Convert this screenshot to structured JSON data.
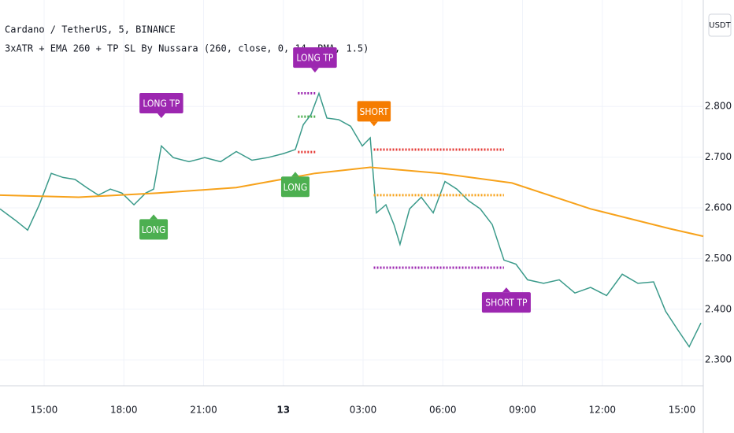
{
  "chart_data": {
    "type": "line",
    "title": "Cardano / TetherUS, 5, BINANCE",
    "subtitle": "3xATR + EMA 260 + TP SL By Nussara (260, close, 0, 14, RMA, 1.5)",
    "currency": "USDT",
    "xlim": [
      -1.66,
      24.8
    ],
    "ylim": [
      2.249,
      3.01
    ],
    "xticks": [
      {
        "value": 0,
        "label": "15:00"
      },
      {
        "value": 3,
        "label": "18:00"
      },
      {
        "value": 6,
        "label": "21:00"
      },
      {
        "value": 9,
        "label": "13"
      },
      {
        "value": 12,
        "label": "03:00"
      },
      {
        "value": 15,
        "label": "06:00"
      },
      {
        "value": 18,
        "label": "09:00"
      },
      {
        "value": 21,
        "label": "12:00"
      },
      {
        "value": 24,
        "label": "15:00"
      }
    ],
    "yticks": [
      {
        "value": 2.3,
        "label": "2.300"
      },
      {
        "value": 2.4,
        "label": "2.400"
      },
      {
        "value": 2.5,
        "label": "2.500"
      },
      {
        "value": 2.6,
        "label": "2.600"
      },
      {
        "value": 2.7,
        "label": "2.700"
      },
      {
        "value": 2.8,
        "label": "2.800"
      }
    ],
    "grid": true,
    "series": [
      {
        "color": "#3a9a8a",
        "x": [
          -1.66,
          -1.07,
          -0.62,
          -0.18,
          0.27,
          0.71,
          1.16,
          1.6,
          2.04,
          2.49,
          2.93,
          3.38,
          3.82,
          4.12,
          4.41,
          4.86,
          5.45,
          6.04,
          6.64,
          7.23,
          7.82,
          8.41,
          9.0,
          9.45,
          9.75,
          10.04,
          10.34,
          10.64,
          11.08,
          11.53,
          11.97,
          12.27,
          12.5,
          12.86,
          13.16,
          13.39,
          13.75,
          14.19,
          14.64,
          15.08,
          15.53,
          15.97,
          16.41,
          16.86,
          17.3,
          17.75,
          18.19,
          18.79,
          19.38,
          19.97,
          20.56,
          21.16,
          21.75,
          22.34,
          22.93,
          23.38,
          23.82,
          24.27,
          24.71
        ],
        "values": [
          2.598,
          2.575,
          2.556,
          2.606,
          2.668,
          2.66,
          2.656,
          2.64,
          2.625,
          2.637,
          2.629,
          2.606,
          2.629,
          2.637,
          2.722,
          2.699,
          2.691,
          2.699,
          2.691,
          2.711,
          2.694,
          2.699,
          2.707,
          2.715,
          2.764,
          2.784,
          2.826,
          2.777,
          2.774,
          2.761,
          2.722,
          2.738,
          2.59,
          2.606,
          2.567,
          2.528,
          2.598,
          2.621,
          2.59,
          2.652,
          2.637,
          2.614,
          2.598,
          2.567,
          2.497,
          2.489,
          2.458,
          2.451,
          2.458,
          2.432,
          2.443,
          2.427,
          2.469,
          2.451,
          2.454,
          2.396,
          2.361,
          2.326,
          2.373
        ]
      },
      {
        "color": "#f7a21b",
        "x": [
          -1.66,
          1.3,
          4.27,
          7.23,
          10.19,
          12.27,
          14.93,
          17.6,
          20.56,
          23.53,
          24.8
        ],
        "values": [
          2.625,
          2.621,
          2.629,
          2.64,
          2.668,
          2.68,
          2.668,
          2.649,
          2.598,
          2.559,
          2.544
        ]
      }
    ],
    "levels": [
      {
        "value": 2.715,
        "x": [
          12.4,
          17.3
        ],
        "color": "#e53935"
      },
      {
        "value": 2.625,
        "x": [
          12.4,
          17.3
        ],
        "color": "#f7a21b"
      },
      {
        "value": 2.482,
        "x": [
          12.4,
          17.3
        ],
        "color": "#9c27b0"
      },
      {
        "value": 2.826,
        "x": [
          9.55,
          10.2
        ],
        "color": "#9c27b0"
      },
      {
        "value": 2.78,
        "x": [
          9.55,
          10.2
        ],
        "color": "#4caf50"
      },
      {
        "value": 2.71,
        "x": [
          9.55,
          10.2
        ],
        "color": "#e53935"
      }
    ],
    "annotations": [
      {
        "text": "LONG TP",
        "x": 4.41,
        "y": 2.777,
        "color": "#9c27b0",
        "position": "above"
      },
      {
        "text": "LONG",
        "x": 4.12,
        "y": 2.587,
        "color": "#4caf50",
        "position": "below"
      },
      {
        "text": "LONG",
        "x": 9.45,
        "y": 2.671,
        "color": "#4caf50",
        "position": "below"
      },
      {
        "text": "LONG TP",
        "x": 10.19,
        "y": 2.867,
        "color": "#9c27b0",
        "position": "above"
      },
      {
        "text": "SHORT",
        "x": 12.41,
        "y": 2.761,
        "color": "#f57c00",
        "position": "above"
      },
      {
        "text": "SHORT TP",
        "x": 17.39,
        "y": 2.443,
        "color": "#9c27b0",
        "position": "below"
      }
    ]
  }
}
